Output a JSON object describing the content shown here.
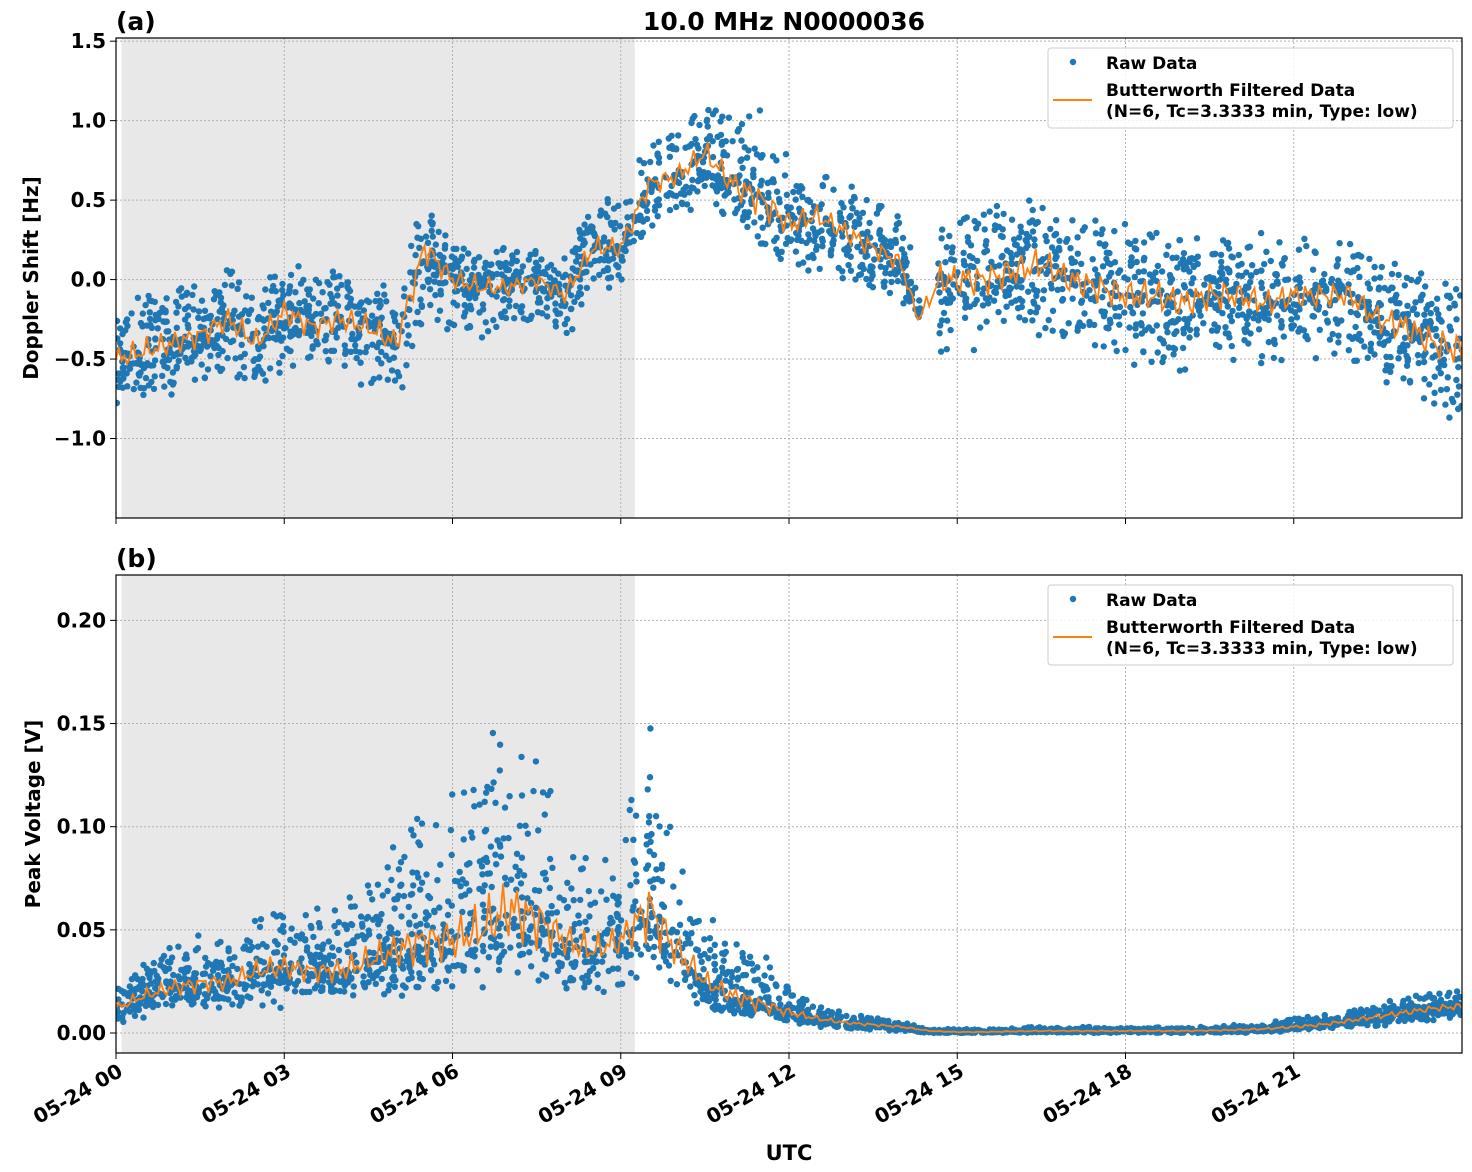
{
  "chart_data": {
    "title": "10.0 MHz N0000036",
    "xlabel": "UTC",
    "x_unit": "hours UTC on 05-24",
    "xlim": [
      0,
      24
    ],
    "xticks": [
      0,
      3,
      6,
      9,
      12,
      15,
      18,
      21
    ],
    "xtick_labels": [
      "05-24 00",
      "05-24 03",
      "05-24 06",
      "05-24 09",
      "05-24 12",
      "05-24 15",
      "05-24 18",
      "05-24 21"
    ],
    "shaded_interval_hours": [
      0.1,
      9.25
    ],
    "colors": {
      "raw": "#1f77b4",
      "filtered": "#ff7f0e",
      "shade": "#e8e8e8",
      "grid": "#b0b0b0"
    },
    "grid": true,
    "legend_placement": "top-right",
    "legend": {
      "raw": "Raw Data",
      "filtered_line1": "Butterworth Filtered Data",
      "filtered_line2": "(N=6, Tc=3.3333 min, Type: low)"
    },
    "panels": [
      {
        "label": "(a)",
        "type": "scatter+line",
        "ylabel": "Doppler Shift [Hz]",
        "ylim": [
          -1.5,
          1.52
        ],
        "yticks": [
          -1.0,
          -0.5,
          0.0,
          0.5,
          1.0,
          1.5
        ],
        "ytick_labels": [
          "−1.0",
          "−0.5",
          "0.0",
          "0.5",
          "1.0",
          "1.5"
        ],
        "x": [
          0,
          0.5,
          1,
          1.5,
          2,
          2.5,
          3,
          3.5,
          4,
          4.5,
          5,
          5.5,
          6,
          6.5,
          7,
          7.5,
          8,
          8.5,
          9,
          9.5,
          10,
          10.5,
          11,
          11.5,
          12,
          12.5,
          13,
          13.5,
          14,
          14.3,
          14.7,
          15,
          15.5,
          16,
          16.5,
          17,
          17.5,
          18,
          18.5,
          19,
          19.5,
          20,
          20.5,
          21,
          21.5,
          22,
          22.5,
          23,
          23.5,
          24
        ],
        "filtered": [
          -0.5,
          -0.45,
          -0.4,
          -0.35,
          -0.25,
          -0.4,
          -0.2,
          -0.3,
          -0.25,
          -0.3,
          -0.4,
          0.2,
          0.0,
          -0.05,
          -0.05,
          0.0,
          -0.1,
          0.2,
          0.2,
          0.6,
          0.65,
          0.8,
          0.6,
          0.5,
          0.35,
          0.4,
          0.3,
          0.2,
          0.1,
          -0.25,
          0.0,
          0.0,
          0.0,
          0.05,
          0.1,
          0.0,
          -0.05,
          -0.1,
          -0.1,
          -0.15,
          -0.1,
          -0.1,
          -0.15,
          -0.1,
          -0.1,
          -0.1,
          -0.25,
          -0.3,
          -0.4,
          -0.45
        ],
        "raw_low": [
          -0.8,
          -0.8,
          -0.75,
          -0.7,
          -0.65,
          -0.8,
          -0.6,
          -0.65,
          -0.65,
          -0.7,
          -0.8,
          -0.3,
          -0.35,
          -0.4,
          -0.35,
          -0.3,
          -0.4,
          -0.1,
          -0.05,
          0.3,
          0.35,
          0.45,
          0.25,
          0.15,
          0.0,
          0.05,
          -0.05,
          -0.1,
          -0.2,
          -0.1,
          -0.5,
          -0.5,
          -0.5,
          -0.45,
          -0.4,
          -0.45,
          -0.5,
          -0.55,
          -0.6,
          -0.6,
          -0.6,
          -0.55,
          -0.55,
          -0.5,
          -0.5,
          -0.5,
          -0.75,
          -0.8,
          -0.9,
          -0.95
        ],
        "raw_high": [
          -0.1,
          -0.05,
          0.0,
          0.0,
          0.1,
          0.0,
          0.15,
          0.05,
          0.1,
          0.05,
          0.0,
          0.55,
          0.25,
          0.25,
          0.2,
          0.2,
          0.15,
          0.55,
          0.6,
          0.95,
          1.0,
          1.15,
          1.1,
          1.2,
          0.8,
          0.7,
          0.65,
          0.5,
          0.45,
          0.1,
          0.5,
          0.5,
          0.5,
          0.55,
          0.6,
          0.45,
          0.45,
          0.4,
          0.4,
          0.35,
          0.35,
          0.3,
          0.3,
          0.3,
          0.25,
          0.25,
          0.2,
          0.15,
          0.1,
          0.1
        ]
      },
      {
        "label": "(b)",
        "type": "scatter+line",
        "ylabel": "Peak Voltage [V]",
        "ylim": [
          -0.0097,
          0.222
        ],
        "yticks": [
          0.0,
          0.05,
          0.1,
          0.15,
          0.2
        ],
        "ytick_labels": [
          "0.00",
          "0.05",
          "0.10",
          "0.15",
          "0.20"
        ],
        "x": [
          0,
          0.5,
          1,
          1.5,
          2,
          2.5,
          3,
          3.5,
          4,
          4.5,
          5,
          5.5,
          6,
          6.5,
          7,
          7.5,
          8,
          8.5,
          9,
          9.5,
          10,
          10.5,
          11,
          11.5,
          12,
          12.5,
          13,
          13.5,
          14,
          14.5,
          15,
          15.5,
          16,
          16.5,
          17,
          17.5,
          18,
          18.5,
          19,
          19.5,
          20,
          20.5,
          21,
          21.5,
          22,
          22.5,
          23,
          23.5,
          24
        ],
        "filtered": [
          0.012,
          0.018,
          0.022,
          0.024,
          0.025,
          0.03,
          0.032,
          0.03,
          0.03,
          0.035,
          0.04,
          0.045,
          0.045,
          0.05,
          0.06,
          0.055,
          0.045,
          0.04,
          0.045,
          0.06,
          0.04,
          0.025,
          0.018,
          0.014,
          0.01,
          0.007,
          0.005,
          0.004,
          0.003,
          0.001,
          0.0005,
          0.0005,
          0.0008,
          0.001,
          0.001,
          0.001,
          0.001,
          0.001,
          0.001,
          0.0012,
          0.0015,
          0.002,
          0.003,
          0.004,
          0.006,
          0.008,
          0.01,
          0.012,
          0.013
        ],
        "raw_low": [
          0.004,
          0.006,
          0.008,
          0.008,
          0.01,
          0.01,
          0.012,
          0.012,
          0.012,
          0.014,
          0.016,
          0.018,
          0.018,
          0.02,
          0.022,
          0.02,
          0.018,
          0.016,
          0.02,
          0.025,
          0.015,
          0.01,
          0.007,
          0.005,
          0.003,
          0.002,
          0.002,
          0.001,
          0.001,
          0.0,
          0.0,
          0.0,
          0.0,
          0.0,
          0.0,
          0.0,
          0.0,
          0.0,
          0.0,
          0.0,
          0.0,
          0.0,
          0.001,
          0.001,
          0.002,
          0.003,
          0.004,
          0.005,
          0.006
        ],
        "raw_high": [
          0.025,
          0.035,
          0.045,
          0.05,
          0.05,
          0.06,
          0.07,
          0.06,
          0.07,
          0.08,
          0.1,
          0.12,
          0.12,
          0.14,
          0.17,
          0.15,
          0.1,
          0.09,
          0.09,
          0.17,
          0.1,
          0.06,
          0.05,
          0.04,
          0.025,
          0.015,
          0.01,
          0.008,
          0.006,
          0.002,
          0.002,
          0.002,
          0.003,
          0.003,
          0.003,
          0.003,
          0.003,
          0.003,
          0.003,
          0.003,
          0.004,
          0.005,
          0.008,
          0.01,
          0.012,
          0.015,
          0.018,
          0.02,
          0.022
        ]
      }
    ]
  }
}
